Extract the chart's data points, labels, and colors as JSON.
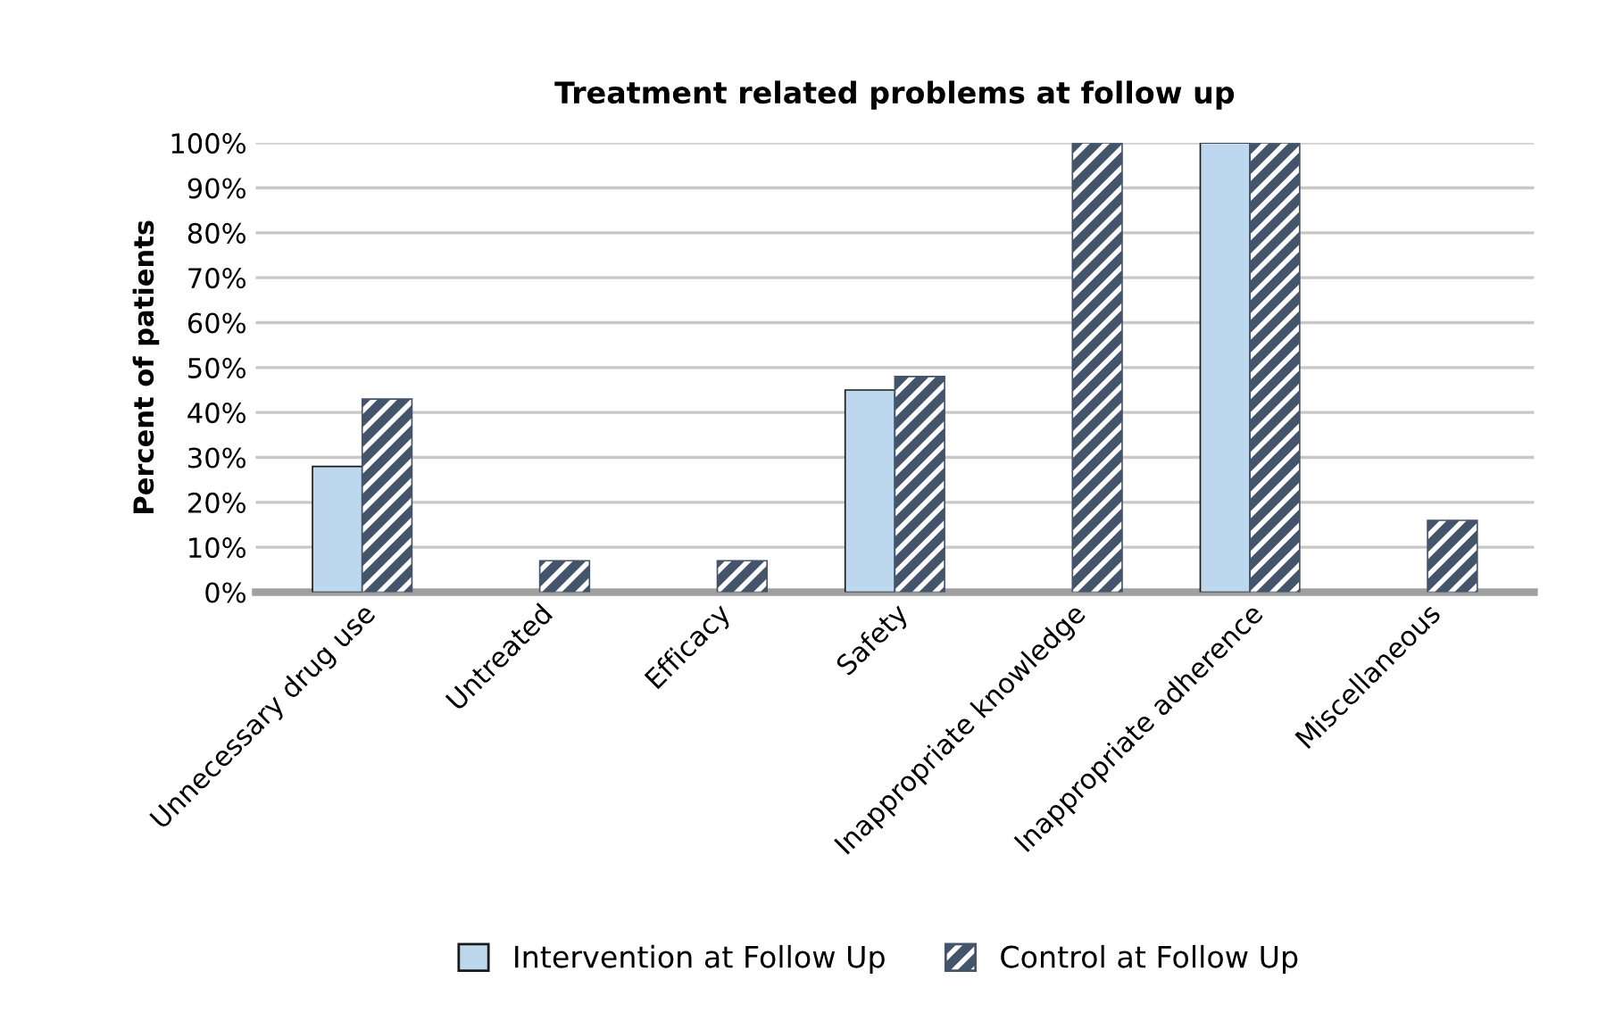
{
  "chart_data": {
    "type": "bar",
    "title": "Treatment related problems at follow up",
    "ylabel": "Percent of patients",
    "categories": [
      "Unnecessary drug use",
      "Untreated",
      "Efficacy",
      "Safety",
      "Inappropriate knowledge",
      "Inappropriate adherence",
      "Miscellaneous"
    ],
    "series": [
      {
        "name": "Intervention at Follow Up",
        "color": "#bdd7ee",
        "values": [
          28,
          0,
          0,
          45,
          0,
          100,
          0
        ]
      },
      {
        "name": "Control at Follow Up",
        "color": "#44546a",
        "values": [
          43,
          7,
          7,
          48,
          100,
          100,
          16
        ]
      }
    ],
    "ylim": [
      0,
      100
    ],
    "yticks": [
      {
        "value": 0,
        "label": "0%"
      },
      {
        "value": 10,
        "label": "10%"
      },
      {
        "value": 20,
        "label": "20%"
      },
      {
        "value": 30,
        "label": "30%"
      },
      {
        "value": 40,
        "label": "40%"
      },
      {
        "value": 50,
        "label": "50%"
      },
      {
        "value": 60,
        "label": "60%"
      },
      {
        "value": 70,
        "label": "70%"
      },
      {
        "value": 80,
        "label": "80%"
      },
      {
        "value": 90,
        "label": "90%"
      },
      {
        "value": 100,
        "label": "100%"
      }
    ],
    "grid": "y",
    "legend": "bottom"
  }
}
